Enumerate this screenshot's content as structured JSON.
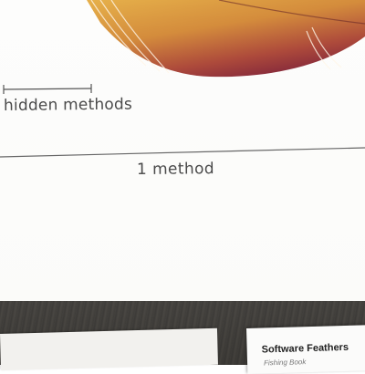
{
  "illustration": {
    "feather_colors": [
      "#e8b24a",
      "#d8933a",
      "#b8553a",
      "#8e2f3a"
    ],
    "scale_label": "hidden methods"
  },
  "caption": "1 method",
  "book": {
    "title": "Software Feathers",
    "subtitle": "Fishing Book"
  }
}
